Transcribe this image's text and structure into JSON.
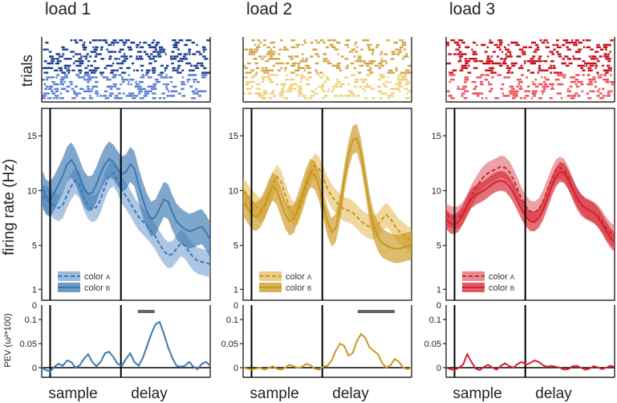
{
  "chart_data": {
    "type": "line",
    "row_labels": {
      "raster": "trials",
      "rate": "firing rate (Hz)",
      "pev": "PEV (ω²*100)"
    },
    "x_labels": [
      "sample",
      "delay"
    ],
    "rate_ticks": [
      1,
      5,
      10,
      15
    ],
    "rate_ylim": [
      0,
      17.5
    ],
    "pev_ticks": [
      "0",
      "0.05",
      "0.1"
    ],
    "pev_tick_values": [
      0,
      0.05,
      0.1
    ],
    "pev_ylim": [
      -0.02,
      0.13
    ],
    "sample_onset": 0.05,
    "delay_onset": 0.47,
    "panels": [
      {
        "title": "load 1",
        "color_main": "#3b78b0",
        "color_light": "#7fa8d4",
        "raster_dark": "#1f3f8f",
        "raster_light": "#5b7fd1",
        "legend_a": "color",
        "legend_a_sub": "A",
        "legend_b": "color",
        "legend_b_sub": "B",
        "sig_bar": [
          0.57,
          0.67
        ],
        "series_a": [
          9.5,
          9.2,
          9.0,
          8.6,
          8.4,
          8.7,
          9.6,
          10.4,
          10.9,
          10.5,
          9.4,
          8.6,
          8.3,
          8.5,
          9.2,
          10.4,
          11.3,
          11.6,
          11.0,
          10.0,
          9.5,
          8.9,
          8.2,
          7.6,
          7.2,
          6.8,
          6.3,
          5.8,
          5.1,
          4.5,
          4.1,
          4.2,
          4.7,
          5.2,
          5.0,
          4.4,
          3.9,
          3.6,
          3.5,
          3.4,
          3.3
        ],
        "series_b": [
          10.4,
          9.4,
          9.2,
          9.8,
          10.6,
          11.4,
          12.4,
          12.8,
          12.2,
          11.2,
          10.2,
          9.7,
          9.8,
          10.6,
          11.6,
          12.4,
          12.9,
          12.6,
          12.0,
          11.5,
          11.7,
          12.4,
          12.0,
          10.5,
          9.2,
          8.1,
          7.4,
          7.6,
          8.4,
          9.2,
          9.0,
          8.0,
          7.2,
          6.8,
          6.5,
          6.3,
          6.4,
          6.6,
          6.7,
          6.2,
          5.5
        ],
        "band_a": 1.2,
        "band_b": 1.6,
        "pev": [
          0.0,
          -0.005,
          -0.008,
          0.002,
          0.008,
          0.004,
          0.015,
          0.012,
          0.0,
          0.005,
          0.018,
          0.028,
          0.012,
          0.003,
          0.012,
          0.03,
          0.033,
          0.022,
          0.008,
          0.004,
          0.018,
          0.03,
          0.012,
          0.004,
          0.02,
          0.045,
          0.07,
          0.09,
          0.095,
          0.07,
          0.042,
          0.02,
          0.004,
          0.002,
          0.004,
          0.012,
          0.002,
          -0.003,
          0.008,
          0.012,
          0.004
        ]
      },
      {
        "title": "load 2",
        "color_main": "#c9971e",
        "color_light": "#e8c168",
        "raster_dark": "#d3a74a",
        "raster_light": "#efcf7a",
        "legend_a": "color",
        "legend_a_sub": "A",
        "legend_b": "color",
        "legend_b_sub": "B",
        "sig_bar": [
          0.68,
          0.9
        ],
        "series_a": [
          10.0,
          9.6,
          9.0,
          8.6,
          8.2,
          8.4,
          9.4,
          10.5,
          11.3,
          10.8,
          9.6,
          8.5,
          7.8,
          8.0,
          9.0,
          10.3,
          11.6,
          12.3,
          12.0,
          11.2,
          10.2,
          9.5,
          9.0,
          8.6,
          8.3,
          8.2,
          8.0,
          7.6,
          7.2,
          6.9,
          6.7,
          6.6,
          6.9,
          7.4,
          7.8,
          7.4,
          6.8,
          6.3,
          6.0,
          5.7,
          5.4
        ],
        "series_b": [
          9.0,
          8.4,
          7.8,
          7.6,
          7.9,
          8.6,
          9.6,
          10.4,
          10.0,
          8.9,
          7.8,
          7.2,
          7.4,
          8.4,
          9.6,
          10.8,
          11.6,
          11.4,
          10.4,
          8.8,
          7.2,
          6.2,
          6.6,
          8.4,
          11.0,
          13.2,
          14.6,
          14.8,
          13.4,
          11.0,
          8.5,
          6.8,
          5.8,
          5.2,
          5.0,
          4.8,
          4.7,
          4.7,
          4.8,
          4.9,
          5.0
        ],
        "band_a": 1.1,
        "band_b": 1.3,
        "pev": [
          0.0,
          -0.002,
          -0.004,
          -0.002,
          0.0,
          -0.004,
          -0.001,
          0.003,
          -0.002,
          -0.004,
          0.0,
          0.006,
          0.003,
          -0.001,
          0.002,
          0.008,
          0.005,
          -0.002,
          -0.004,
          0.002,
          0.004,
          0.015,
          0.035,
          0.05,
          0.045,
          0.025,
          0.03,
          0.055,
          0.07,
          0.062,
          0.042,
          0.035,
          0.028,
          0.01,
          0.0,
          0.005,
          0.018,
          0.012,
          0.0,
          -0.003,
          0.0
        ]
      },
      {
        "title": "load 3",
        "color_main": "#d42330",
        "color_light": "#e07077",
        "raster_dark": "#c8101c",
        "raster_light": "#f0505a",
        "legend_a": "color",
        "legend_a_sub": "A",
        "legend_b": "color",
        "legend_b_sub": "B",
        "sig_bar": null,
        "series_a": [
          7.8,
          7.6,
          7.5,
          7.6,
          8.0,
          8.7,
          9.5,
          10.2,
          10.8,
          11.3,
          11.6,
          11.8,
          12.0,
          12.2,
          12.1,
          11.7,
          11.0,
          10.1,
          9.2,
          8.5,
          8.1,
          8.0,
          8.3,
          9.0,
          10.0,
          11.0,
          11.8,
          12.1,
          11.9,
          11.2,
          10.2,
          9.3,
          8.7,
          8.4,
          8.2,
          8.0,
          7.7,
          7.2,
          6.6,
          6.1,
          5.8
        ],
        "series_b": [
          7.4,
          7.0,
          6.9,
          7.2,
          7.8,
          8.6,
          9.3,
          9.6,
          9.8,
          10.0,
          10.3,
          10.6,
          10.8,
          10.9,
          10.8,
          10.4,
          9.8,
          9.0,
          8.2,
          7.6,
          7.2,
          7.2,
          7.5,
          8.2,
          9.2,
          10.3,
          11.2,
          11.7,
          11.6,
          11.0,
          10.2,
          9.4,
          8.8,
          8.4,
          8.2,
          8.0,
          7.6,
          7.0,
          6.3,
          5.7,
          5.3
        ],
        "band_a": 1.0,
        "band_b": 0.9,
        "pev": [
          0.0,
          -0.003,
          -0.005,
          0.0,
          0.006,
          0.028,
          0.012,
          -0.002,
          -0.005,
          0.002,
          0.006,
          0.0,
          -0.004,
          0.004,
          0.009,
          0.003,
          0.0,
          0.008,
          0.012,
          0.006,
          0.01,
          0.015,
          0.012,
          0.005,
          0.002,
          0.004,
          0.002,
          0.0,
          -0.004,
          -0.003,
          0.003,
          0.004,
          0.0,
          -0.004,
          -0.002,
          0.003,
          0.001,
          -0.003,
          0.0,
          0.004,
          0.002
        ]
      }
    ]
  }
}
